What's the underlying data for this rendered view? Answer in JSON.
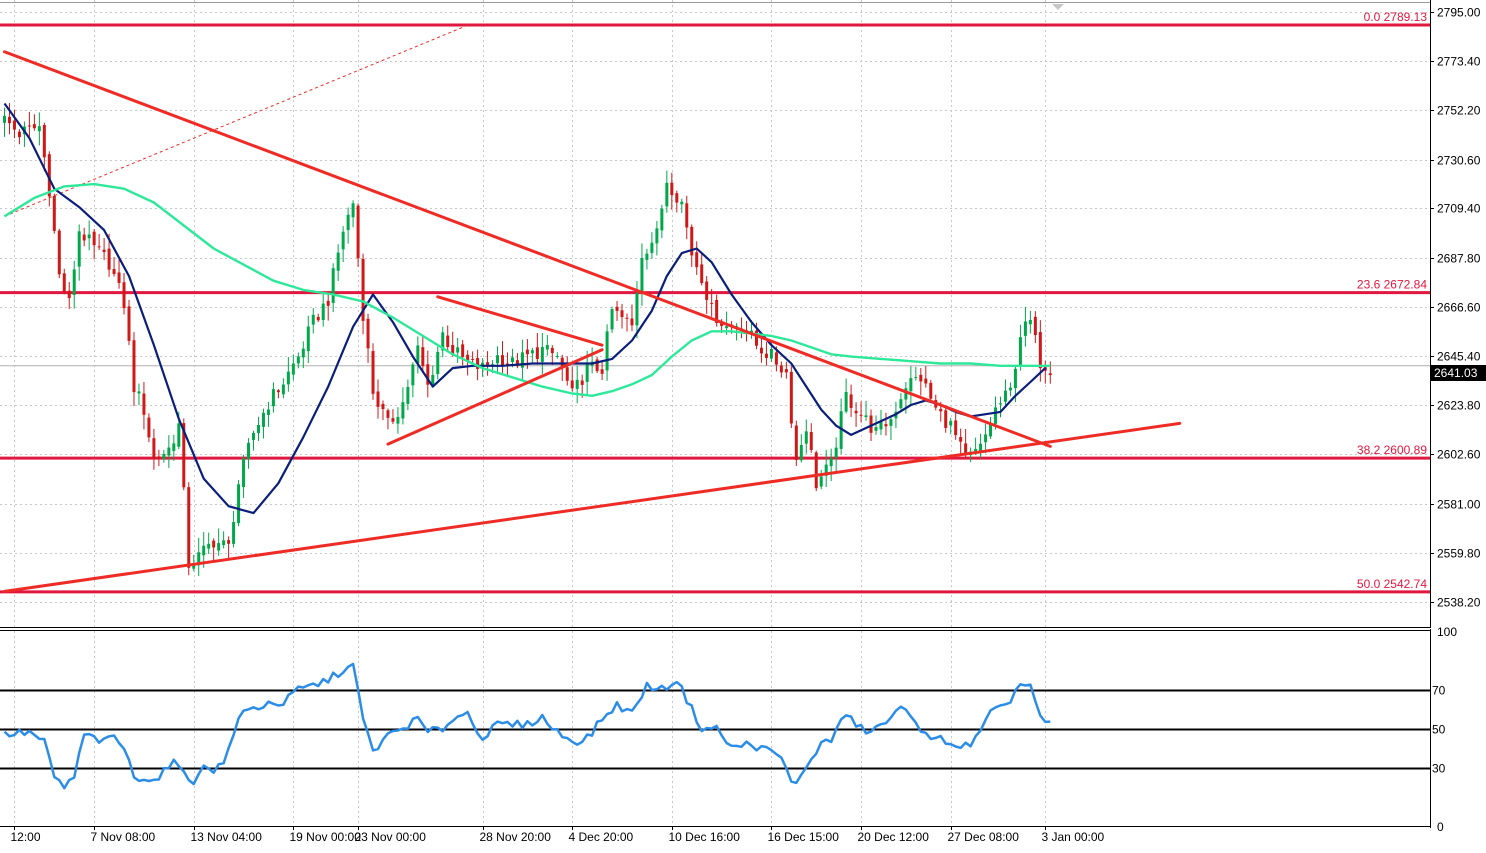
{
  "chart_data": {
    "type": "candlestick",
    "title": "",
    "price_panel": {
      "ylim": [
        2527.5,
        2800.0
      ],
      "ytick_labels": [
        "2795.00",
        "2773.40",
        "2752.20",
        "2730.60",
        "2709.40",
        "2687.80",
        "2666.60",
        "2645.40",
        "2623.80",
        "2602.60",
        "2581.00",
        "2559.80",
        "2538.20"
      ],
      "ytick_values": [
        2795.0,
        2773.4,
        2752.2,
        2730.6,
        2709.4,
        2687.8,
        2666.6,
        2645.4,
        2623.8,
        2602.6,
        2581.0,
        2559.8,
        2538.2
      ],
      "current_price": "2641.03",
      "current_price_value": 2641.03,
      "fib_levels": [
        {
          "label": "0.0 2789.13",
          "value": 2789.13
        },
        {
          "label": "23.6 2672.84",
          "value": 2672.84
        },
        {
          "label": "38.2 2600.89",
          "value": 2600.89
        },
        {
          "label": "50.0 2542.74",
          "value": 2542.74
        }
      ],
      "trendlines": [
        {
          "name": "descending-resistance",
          "from": {
            "bar": 0,
            "price": 2777.5
          },
          "to": {
            "bar": 210,
            "price": 2606.0
          }
        },
        {
          "name": "ascending-support",
          "from": {
            "bar": 0,
            "price": 2543.0
          },
          "to": {
            "bar": 236,
            "price": 2616.0
          }
        },
        {
          "name": "pennant-upper",
          "from": {
            "bar": 87,
            "price": 2671.0
          },
          "to": {
            "bar": 120,
            "price": 2650.0
          }
        },
        {
          "name": "pennant-lower",
          "from": {
            "bar": 77,
            "price": 2607.0
          },
          "to": {
            "bar": 120,
            "price": 2648.0
          }
        },
        {
          "name": "dotted-extension",
          "from": {
            "bar": 0,
            "price": 2706.0
          },
          "to": {
            "bar": 93,
            "price": 2789.0
          }
        }
      ],
      "candle_count": 210,
      "candle_anchors": [
        [
          0,
          2748
        ],
        [
          3,
          2742
        ],
        [
          7,
          2745
        ],
        [
          9,
          2718
        ],
        [
          11,
          2680
        ],
        [
          13,
          2668
        ],
        [
          15,
          2700
        ],
        [
          18,
          2692
        ],
        [
          21,
          2686
        ],
        [
          24,
          2668
        ],
        [
          26,
          2632
        ],
        [
          28,
          2622
        ],
        [
          30,
          2600
        ],
        [
          33,
          2605
        ],
        [
          35,
          2615
        ],
        [
          37,
          2555
        ],
        [
          39,
          2558
        ],
        [
          42,
          2565
        ],
        [
          45,
          2562
        ],
        [
          47,
          2590
        ],
        [
          50,
          2612
        ],
        [
          53,
          2625
        ],
        [
          56,
          2634
        ],
        [
          59,
          2645
        ],
        [
          62,
          2660
        ],
        [
          65,
          2670
        ],
        [
          68,
          2700
        ],
        [
          70,
          2712
        ],
        [
          72,
          2664
        ],
        [
          74,
          2630
        ],
        [
          77,
          2615
        ],
        [
          80,
          2625
        ],
        [
          83,
          2648
        ],
        [
          85,
          2632
        ],
        [
          88,
          2655
        ],
        [
          90,
          2648
        ],
        [
          93,
          2642
        ],
        [
          96,
          2640
        ],
        [
          99,
          2645
        ],
        [
          102,
          2642
        ],
        [
          105,
          2645
        ],
        [
          108,
          2648
        ],
        [
          111,
          2645
        ],
        [
          114,
          2628
        ],
        [
          117,
          2640
        ],
        [
          120,
          2640
        ],
        [
          122,
          2665
        ],
        [
          126,
          2658
        ],
        [
          128,
          2690
        ],
        [
          131,
          2698
        ],
        [
          133,
          2722
        ],
        [
          136,
          2712
        ],
        [
          138,
          2690
        ],
        [
          140,
          2680
        ],
        [
          142,
          2665
        ],
        [
          145,
          2658
        ],
        [
          148,
          2660
        ],
        [
          151,
          2650
        ],
        [
          154,
          2645
        ],
        [
          157,
          2638
        ],
        [
          159,
          2600
        ],
        [
          161,
          2615
        ],
        [
          163,
          2590
        ],
        [
          166,
          2598
        ],
        [
          169,
          2628
        ],
        [
          172,
          2620
        ],
        [
          175,
          2612
        ],
        [
          178,
          2618
        ],
        [
          181,
          2633
        ],
        [
          184,
          2636
        ],
        [
          187,
          2622
        ],
        [
          190,
          2615
        ],
        [
          193,
          2600
        ],
        [
          196,
          2605
        ],
        [
          199,
          2622
        ],
        [
          202,
          2630
        ],
        [
          204,
          2655
        ],
        [
          206,
          2660
        ],
        [
          208,
          2643
        ],
        [
          210,
          2640
        ]
      ],
      "moving_averages": [
        {
          "name": "fast-ma",
          "color": "#0a1e7c",
          "points": [
            [
              0,
              2755
            ],
            [
              5,
              2740
            ],
            [
              10,
              2718
            ],
            [
              15,
              2710
            ],
            [
              20,
              2700
            ],
            [
              25,
              2680
            ],
            [
              30,
              2650
            ],
            [
              35,
              2618
            ],
            [
              40,
              2592
            ],
            [
              45,
              2580
            ],
            [
              50,
              2577
            ],
            [
              55,
              2590
            ],
            [
              60,
              2610
            ],
            [
              65,
              2632
            ],
            [
              70,
              2658
            ],
            [
              74,
              2672
            ],
            [
              78,
              2660
            ],
            [
              82,
              2645
            ],
            [
              86,
              2632
            ],
            [
              90,
              2640
            ],
            [
              94,
              2641
            ],
            [
              100,
              2641
            ],
            [
              106,
              2642
            ],
            [
              112,
              2642
            ],
            [
              118,
              2642
            ],
            [
              122,
              2644
            ],
            [
              126,
              2652
            ],
            [
              130,
              2665
            ],
            [
              133,
              2680
            ],
            [
              136,
              2690
            ],
            [
              139,
              2692
            ],
            [
              142,
              2686
            ],
            [
              146,
              2672
            ],
            [
              150,
              2660
            ],
            [
              154,
              2650
            ],
            [
              158,
              2642
            ],
            [
              161,
              2632
            ],
            [
              164,
              2622
            ],
            [
              167,
              2615
            ],
            [
              170,
              2611
            ],
            [
              173,
              2614
            ],
            [
              176,
              2617
            ],
            [
              179,
              2620
            ],
            [
              182,
              2624
            ],
            [
              185,
              2626
            ],
            [
              188,
              2624
            ],
            [
              191,
              2621
            ],
            [
              194,
              2619
            ],
            [
              197,
              2620
            ],
            [
              200,
              2621
            ],
            [
              203,
              2628
            ],
            [
              206,
              2634
            ],
            [
              209,
              2640
            ]
          ]
        },
        {
          "name": "slow-ma",
          "color": "#2ee89a",
          "points": [
            [
              0,
              2706
            ],
            [
              6,
              2714
            ],
            [
              12,
              2719
            ],
            [
              18,
              2720
            ],
            [
              24,
              2718
            ],
            [
              30,
              2712
            ],
            [
              36,
              2702
            ],
            [
              42,
              2692
            ],
            [
              48,
              2685
            ],
            [
              54,
              2678
            ],
            [
              60,
              2674
            ],
            [
              66,
              2672
            ],
            [
              72,
              2669
            ],
            [
              78,
              2662
            ],
            [
              84,
              2654
            ],
            [
              90,
              2646
            ],
            [
              96,
              2640
            ],
            [
              102,
              2636
            ],
            [
              108,
              2632
            ],
            [
              114,
              2629
            ],
            [
              118,
              2628
            ],
            [
              122,
              2630
            ],
            [
              126,
              2633
            ],
            [
              130,
              2637
            ],
            [
              134,
              2645
            ],
            [
              138,
              2652
            ],
            [
              142,
              2656
            ],
            [
              146,
              2656
            ],
            [
              150,
              2655
            ],
            [
              154,
              2654
            ],
            [
              158,
              2652
            ],
            [
              162,
              2649
            ],
            [
              166,
              2646
            ],
            [
              170,
              2645
            ],
            [
              176,
              2644
            ],
            [
              182,
              2643
            ],
            [
              188,
              2642
            ],
            [
              194,
              2642
            ],
            [
              200,
              2641
            ],
            [
              206,
              2641
            ],
            [
              210,
              2641
            ]
          ]
        }
      ]
    },
    "rsi_panel": {
      "ylim": [
        0,
        100
      ],
      "ytick_labels": [
        "100",
        "0"
      ],
      "levels": [
        {
          "label": "70",
          "value": 70
        },
        {
          "label": "50",
          "value": 50
        },
        {
          "label": "30",
          "value": 30
        }
      ],
      "series": [
        {
          "color": "#2b8de8",
          "points": [
            [
              0,
              47
            ],
            [
              5,
              48
            ],
            [
              8,
              43
            ],
            [
              10,
              25
            ],
            [
              12,
              20
            ],
            [
              14,
              25
            ],
            [
              16,
              47
            ],
            [
              18,
              45
            ],
            [
              20,
              43
            ],
            [
              22,
              46
            ],
            [
              24,
              40
            ],
            [
              26,
              25
            ],
            [
              28,
              25
            ],
            [
              30,
              23
            ],
            [
              32,
              28
            ],
            [
              34,
              32
            ],
            [
              36,
              30
            ],
            [
              38,
              20
            ],
            [
              40,
              32
            ],
            [
              42,
              29
            ],
            [
              44,
              32
            ],
            [
              46,
              48
            ],
            [
              48,
              59
            ],
            [
              50,
              60
            ],
            [
              53,
              63
            ],
            [
              56,
              63
            ],
            [
              59,
              70
            ],
            [
              62,
              72
            ],
            [
              65,
              75
            ],
            [
              68,
              80
            ],
            [
              70,
              82
            ],
            [
              72,
              55
            ],
            [
              74,
              38
            ],
            [
              76,
              44
            ],
            [
              78,
              48
            ],
            [
              80,
              50
            ],
            [
              83,
              55
            ],
            [
              85,
              48
            ],
            [
              88,
              50
            ],
            [
              90,
              55
            ],
            [
              93,
              58
            ],
            [
              96,
              45
            ],
            [
              99,
              52
            ],
            [
              102,
              52
            ],
            [
              105,
              52
            ],
            [
              108,
              56
            ],
            [
              110,
              50
            ],
            [
              113,
              45
            ],
            [
              116,
              43
            ],
            [
              118,
              48
            ],
            [
              120,
              55
            ],
            [
              123,
              62
            ],
            [
              126,
              58
            ],
            [
              129,
              72
            ],
            [
              132,
              70
            ],
            [
              135,
              75
            ],
            [
              138,
              60
            ],
            [
              140,
              50
            ],
            [
              143,
              50
            ],
            [
              146,
              40
            ],
            [
              149,
              42
            ],
            [
              152,
              40
            ],
            [
              154,
              38
            ],
            [
              156,
              35
            ],
            [
              158,
              22
            ],
            [
              160,
              25
            ],
            [
              162,
              35
            ],
            [
              164,
              42
            ],
            [
              166,
              44
            ],
            [
              168,
              55
            ],
            [
              170,
              55
            ],
            [
              172,
              50
            ],
            [
              174,
              48
            ],
            [
              176,
              52
            ],
            [
              178,
              55
            ],
            [
              180,
              60
            ],
            [
              182,
              58
            ],
            [
              184,
              50
            ],
            [
              186,
              43
            ],
            [
              188,
              45
            ],
            [
              190,
              43
            ],
            [
              192,
              40
            ],
            [
              194,
              42
            ],
            [
              196,
              48
            ],
            [
              198,
              58
            ],
            [
              200,
              60
            ],
            [
              202,
              65
            ],
            [
              204,
              73
            ],
            [
              206,
              72
            ],
            [
              208,
              55
            ],
            [
              210,
              52
            ]
          ]
        }
      ]
    },
    "x_axis": {
      "tick_labels": [
        "12:00",
        "7 Nov 08:00",
        "13 Nov 04:00",
        "19 Nov 00:00",
        "23 Nov 00:00",
        "28 Nov 20:00",
        "4 Dec 20:00",
        "10 Dec 16:00",
        "16 Dec 15:00",
        "20 Dec 12:00",
        "27 Dec 08:00",
        "3 Jan 00:00"
      ],
      "tick_bars": [
        2,
        18,
        38,
        58,
        71,
        96,
        114,
        134,
        154,
        172,
        190,
        209
      ]
    },
    "colors": {
      "bull": "#00a84a",
      "bear": "#d01818",
      "fib": "#e0173e",
      "trend": "#ef2b25",
      "ma_fast": "#0a1e7c",
      "ma_slow": "#2ee89a",
      "rsi": "#2b8de8"
    }
  }
}
